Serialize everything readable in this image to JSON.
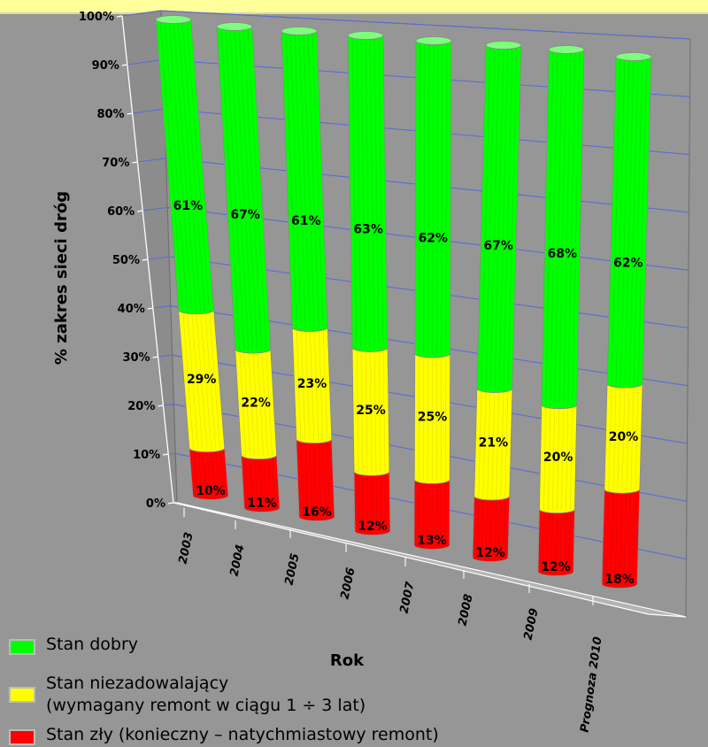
{
  "chart_data": {
    "type": "bar",
    "stacked": true,
    "style": "3d-cylinder",
    "categories": [
      "2003",
      "2004",
      "2005",
      "2006",
      "2007",
      "2008",
      "2009",
      "Prognoza 2010"
    ],
    "series": [
      {
        "name": "Stan zły (konieczny – natychmiastowy remont)",
        "color": "#ff0000",
        "values": [
          10,
          11,
          16,
          12,
          13,
          12,
          12,
          18
        ],
        "labels": [
          "10%",
          "11%",
          "16%",
          "12%",
          "13%",
          "12%",
          "12%",
          "18%"
        ]
      },
      {
        "name": "Stan niezadowalający (wymagany remont w ciągu 1 ÷ 3 lat)",
        "color": "#ffff00",
        "values": [
          29,
          22,
          23,
          25,
          25,
          21,
          20,
          20
        ],
        "labels": [
          "29%",
          "22%",
          "23%",
          "25%",
          "25%",
          "21%",
          "20%",
          "20%"
        ]
      },
      {
        "name": "Stan dobry",
        "color": "#00ff00",
        "values": [
          61,
          67,
          61,
          63,
          62,
          67,
          68,
          62
        ],
        "labels": [
          "61%",
          "67%",
          "61%",
          "63%",
          "62%",
          "67%",
          "68%",
          "62%"
        ]
      }
    ],
    "xlabel": "Rok",
    "ylabel": "% zakres sieci dróg",
    "ylim": [
      0,
      100
    ],
    "yticks": [
      "0%",
      "10%",
      "20%",
      "30%",
      "40%",
      "50%",
      "60%",
      "70%",
      "80%",
      "90%",
      "100%"
    ],
    "grid": true,
    "legend_position": "bottom-left"
  },
  "legend": {
    "items": [
      {
        "color": "#00ff00",
        "lines": [
          "Stan dobry"
        ]
      },
      {
        "color": "#ffff00",
        "lines": [
          "Stan niezadowalający",
          "(wymagany  remont w ciągu 1 ÷ 3 lat)"
        ]
      },
      {
        "color": "#ff0000",
        "lines": [
          "Stan zły (konieczny – natychmiastowy remont)"
        ]
      }
    ]
  }
}
